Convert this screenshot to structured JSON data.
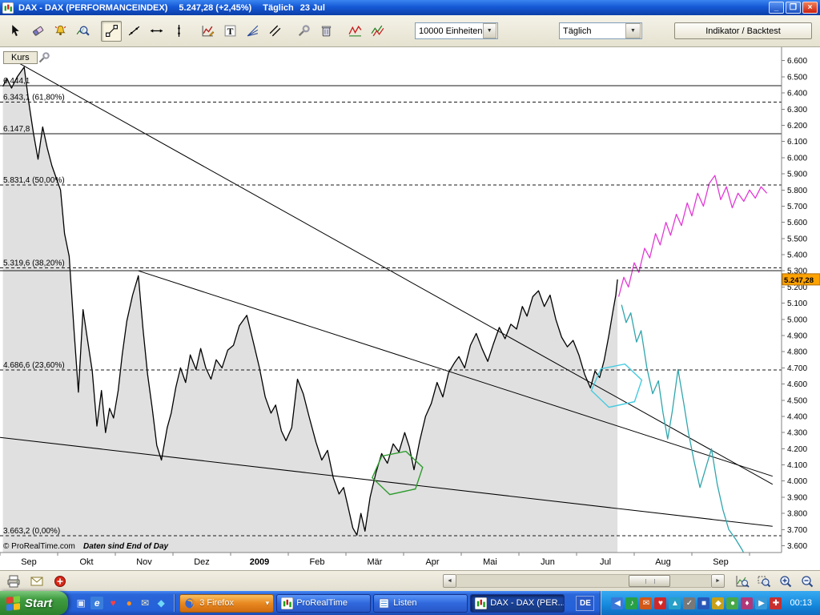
{
  "window": {
    "title": "DAX - DAX (PERFORMANCEINDEX)",
    "price": "5.247,28 (+2,45%)",
    "period": "Täglich",
    "date": "23 Jul",
    "minimize_glyph": "_",
    "restore_glyph": "❐",
    "close_glyph": "×"
  },
  "toolbar": {
    "icons": [
      {
        "name": "pointer-tool-icon",
        "icon": "pointer"
      },
      {
        "name": "eraser-tool-icon",
        "icon": "eraser"
      },
      {
        "name": "price-alarm-tool-icon",
        "icon": "alarm"
      },
      {
        "name": "zoom-chart-tool-icon",
        "icon": "zoomchart"
      },
      {
        "name": "segment-tool-icon",
        "icon": "segment",
        "selected": true,
        "gap": true
      },
      {
        "name": "line-tool-icon",
        "icon": "line"
      },
      {
        "name": "horizontal-line-tool-icon",
        "icon": "hline"
      },
      {
        "name": "vertical-line-tool-icon",
        "icon": "vline"
      },
      {
        "name": "indicator-edit-tool-icon",
        "icon": "chartedit",
        "gap": true
      },
      {
        "name": "text-tool-icon",
        "icon": "text"
      },
      {
        "name": "fan-lines-tool-icon",
        "icon": "fan"
      },
      {
        "name": "parallel-lines-tool-icon",
        "icon": "parallel"
      },
      {
        "name": "settings-tool-icon",
        "icon": "wrench",
        "gap": true
      },
      {
        "name": "delete-tool-icon",
        "icon": "trash"
      },
      {
        "name": "zigzag-indicator-icon",
        "icon": "zigzag",
        "gap": true
      },
      {
        "name": "channel-indicator-icon",
        "icon": "channel"
      }
    ],
    "units_dropdown": "10000 Einheiten",
    "period_dropdown": "Täglich",
    "backtest_button": "Indikator / Backtest",
    "dropdown_arrow": "▼"
  },
  "chart": {
    "kurs_label": "Kurs"
  },
  "chart_data": {
    "type": "line",
    "title": "Kurs",
    "ylim": [
      3600,
      6600
    ],
    "y_step": 100,
    "y_ticks": [
      "6.600",
      "6.500",
      "6.400",
      "6.300",
      "6.200",
      "6.100",
      "6.000",
      "5.900",
      "5.800",
      "5.700",
      "5.600",
      "5.500",
      "5.400",
      "5.300",
      "5.200",
      "5.100",
      "5.000",
      "4.900",
      "4.800",
      "4.700",
      "4.600",
      "4.500",
      "4.400",
      "4.300",
      "4.200",
      "4.100",
      "4.000",
      "3.900",
      "3.800",
      "3.700",
      "3.600"
    ],
    "x_months": [
      "Sep",
      "Okt",
      "Nov",
      "Dez",
      "2009",
      "Feb",
      "Mär",
      "Apr",
      "Mai",
      "Jun",
      "Jul",
      "Aug",
      "Sep"
    ],
    "fill_color": "#e0e0e0",
    "copyright": "© ProRealTime.com",
    "data_note": "Daten sind End of Day",
    "last_price": 5247.28,
    "last_price_label": "5.247,28",
    "badge_color": "#ffa200",
    "levels": [
      {
        "price": 6444.1,
        "label": "6.444,1",
        "style": "solid"
      },
      {
        "price": 6343.1,
        "label": "6.343,1 (61,80%)",
        "style": "dashed"
      },
      {
        "price": 6147.8,
        "label": "6.147,8",
        "style": "solid"
      },
      {
        "price": 5831.4,
        "label": "5.831,4 (50,00%)",
        "style": "dashed"
      },
      {
        "price": 5319.6,
        "label": "5.319,6 (38,20%)",
        "style": "dashed"
      },
      {
        "price": 5300.0,
        "label": "",
        "style": "solid"
      },
      {
        "price": 4686.6,
        "label": "4.686,6 (23,60%)",
        "style": "dashed"
      },
      {
        "price": 3663.2,
        "label": "3.663,2 (0,00%)",
        "style": "dashed"
      }
    ],
    "trendlines": [
      {
        "from": [
          0.3,
          6590
        ],
        "to": [
          13.4,
          3980
        ]
      },
      {
        "from": [
          2.4,
          5300
        ],
        "to": [
          13.4,
          4030
        ]
      },
      {
        "from": [
          0.0,
          4270
        ],
        "to": [
          13.4,
          3720
        ]
      }
    ],
    "annotations": [
      {
        "name": "green-ellipse-annotation",
        "shape": "hexagon",
        "color": "#2e9b2e",
        "center": [
          6.9,
          4050
        ]
      },
      {
        "name": "cyan-ellipse-annotation",
        "shape": "hexagon",
        "color": "#45cbe0",
        "center": [
          10.7,
          4590
        ]
      }
    ],
    "series": [
      {
        "name": "DAX",
        "color": "#000000",
        "filled": true,
        "points": [
          [
            0.05,
            6440
          ],
          [
            0.12,
            6490
          ],
          [
            0.2,
            6430
          ],
          [
            0.3,
            6500
          ],
          [
            0.42,
            6560
          ],
          [
            0.5,
            6340
          ],
          [
            0.58,
            6150
          ],
          [
            0.66,
            5990
          ],
          [
            0.74,
            6190
          ],
          [
            0.82,
            6060
          ],
          [
            0.9,
            5950
          ],
          [
            0.97,
            5880
          ],
          [
            1.05,
            5800
          ],
          [
            1.12,
            5530
          ],
          [
            1.2,
            5390
          ],
          [
            1.28,
            4950
          ],
          [
            1.36,
            4550
          ],
          [
            1.44,
            5060
          ],
          [
            1.52,
            4870
          ],
          [
            1.6,
            4680
          ],
          [
            1.68,
            4340
          ],
          [
            1.76,
            4560
          ],
          [
            1.83,
            4300
          ],
          [
            1.9,
            4450
          ],
          [
            1.97,
            4390
          ],
          [
            2.05,
            4560
          ],
          [
            2.12,
            4780
          ],
          [
            2.2,
            4990
          ],
          [
            2.3,
            5150
          ],
          [
            2.4,
            5270
          ],
          [
            2.48,
            4940
          ],
          [
            2.56,
            4660
          ],
          [
            2.64,
            4450
          ],
          [
            2.72,
            4220
          ],
          [
            2.8,
            4130
          ],
          [
            2.9,
            4330
          ],
          [
            2.97,
            4420
          ],
          [
            3.05,
            4580
          ],
          [
            3.13,
            4700
          ],
          [
            3.22,
            4610
          ],
          [
            3.3,
            4780
          ],
          [
            3.4,
            4690
          ],
          [
            3.48,
            4820
          ],
          [
            3.57,
            4700
          ],
          [
            3.66,
            4630
          ],
          [
            3.75,
            4750
          ],
          [
            3.85,
            4700
          ],
          [
            3.95,
            4810
          ],
          [
            4.05,
            4840
          ],
          [
            4.15,
            4960
          ],
          [
            4.28,
            5025
          ],
          [
            4.4,
            4850
          ],
          [
            4.5,
            4700
          ],
          [
            4.6,
            4520
          ],
          [
            4.7,
            4420
          ],
          [
            4.78,
            4470
          ],
          [
            4.88,
            4310
          ],
          [
            4.96,
            4250
          ],
          [
            5.06,
            4330
          ],
          [
            5.16,
            4630
          ],
          [
            5.26,
            4540
          ],
          [
            5.36,
            4400
          ],
          [
            5.48,
            4240
          ],
          [
            5.58,
            4130
          ],
          [
            5.68,
            4190
          ],
          [
            5.78,
            4020
          ],
          [
            5.88,
            3920
          ],
          [
            5.96,
            3960
          ],
          [
            6.05,
            3820
          ],
          [
            6.12,
            3710
          ],
          [
            6.19,
            3666
          ],
          [
            6.26,
            3800
          ],
          [
            6.33,
            3690
          ],
          [
            6.42,
            3900
          ],
          [
            6.52,
            4050
          ],
          [
            6.62,
            4170
          ],
          [
            6.72,
            4110
          ],
          [
            6.82,
            4230
          ],
          [
            6.92,
            4180
          ],
          [
            7.02,
            4300
          ],
          [
            7.1,
            4210
          ],
          [
            7.18,
            4070
          ],
          [
            7.28,
            4250
          ],
          [
            7.38,
            4400
          ],
          [
            7.48,
            4480
          ],
          [
            7.58,
            4610
          ],
          [
            7.68,
            4520
          ],
          [
            7.78,
            4670
          ],
          [
            7.88,
            4730
          ],
          [
            7.96,
            4770
          ],
          [
            8.06,
            4700
          ],
          [
            8.16,
            4840
          ],
          [
            8.26,
            4913
          ],
          [
            8.36,
            4820
          ],
          [
            8.46,
            4740
          ],
          [
            8.56,
            4850
          ],
          [
            8.66,
            4950
          ],
          [
            8.76,
            4880
          ],
          [
            8.86,
            4970
          ],
          [
            8.96,
            4940
          ],
          [
            9.06,
            5080
          ],
          [
            9.14,
            5020
          ],
          [
            9.24,
            5140
          ],
          [
            9.34,
            5177
          ],
          [
            9.44,
            5080
          ],
          [
            9.54,
            5150
          ],
          [
            9.64,
            5000
          ],
          [
            9.74,
            4890
          ],
          [
            9.84,
            4830
          ],
          [
            9.94,
            4870
          ],
          [
            10.04,
            4780
          ],
          [
            10.14,
            4660
          ],
          [
            10.24,
            4576
          ],
          [
            10.32,
            4680
          ],
          [
            10.4,
            4640
          ],
          [
            10.48,
            4750
          ],
          [
            10.56,
            4900
          ],
          [
            10.63,
            5050
          ],
          [
            10.68,
            5150
          ],
          [
            10.71,
            5247
          ]
        ]
      },
      {
        "name": "projection-bullish",
        "color": "#e23ad6",
        "filled": false,
        "points": [
          [
            10.73,
            5140
          ],
          [
            10.82,
            5260
          ],
          [
            10.9,
            5200
          ],
          [
            11.0,
            5350
          ],
          [
            11.08,
            5290
          ],
          [
            11.18,
            5440
          ],
          [
            11.27,
            5380
          ],
          [
            11.37,
            5530
          ],
          [
            11.45,
            5460
          ],
          [
            11.55,
            5600
          ],
          [
            11.63,
            5520
          ],
          [
            11.73,
            5650
          ],
          [
            11.82,
            5580
          ],
          [
            11.92,
            5720
          ],
          [
            12.0,
            5640
          ],
          [
            12.1,
            5780
          ],
          [
            12.2,
            5700
          ],
          [
            12.3,
            5840
          ],
          [
            12.4,
            5890
          ],
          [
            12.5,
            5740
          ],
          [
            12.6,
            5820
          ],
          [
            12.7,
            5690
          ],
          [
            12.8,
            5780
          ],
          [
            12.9,
            5730
          ],
          [
            13.0,
            5800
          ],
          [
            13.1,
            5750
          ],
          [
            13.2,
            5820
          ],
          [
            13.3,
            5780
          ]
        ]
      },
      {
        "name": "projection-bearish",
        "color": "#2fa6ad",
        "filled": false,
        "points": [
          [
            10.78,
            5090
          ],
          [
            10.86,
            4980
          ],
          [
            10.94,
            5040
          ],
          [
            11.04,
            4860
          ],
          [
            11.12,
            4930
          ],
          [
            11.22,
            4700
          ],
          [
            11.32,
            4540
          ],
          [
            11.42,
            4620
          ],
          [
            11.5,
            4420
          ],
          [
            11.58,
            4260
          ],
          [
            11.66,
            4430
          ],
          [
            11.76,
            4690
          ],
          [
            11.86,
            4480
          ],
          [
            11.94,
            4300
          ],
          [
            12.04,
            4120
          ],
          [
            12.14,
            3960
          ],
          [
            12.24,
            4080
          ],
          [
            12.34,
            4200
          ],
          [
            12.44,
            3980
          ],
          [
            12.54,
            3820
          ],
          [
            12.64,
            3700
          ],
          [
            12.76,
            3640
          ],
          [
            12.88,
            3570
          ],
          [
            12.98,
            3480
          ]
        ]
      }
    ]
  },
  "chart_toolbar": {
    "left_icons": [
      {
        "name": "print-icon",
        "icon": "print"
      },
      {
        "name": "email-icon",
        "icon": "mail"
      },
      {
        "name": "alerts-icon",
        "icon": "redtool"
      }
    ],
    "right_icons": [
      {
        "name": "zoom-fit-icon",
        "icon": "zoomfit"
      },
      {
        "name": "zoom-selection-icon",
        "icon": "zoomsel"
      },
      {
        "name": "zoom-in-icon",
        "icon": "zoomin"
      },
      {
        "name": "zoom-out-icon",
        "icon": "zoomout"
      }
    ],
    "scroll_left_arrow": "◄",
    "scroll_right_arrow": "►"
  },
  "taskbar": {
    "start_label": "Start",
    "language": "DE",
    "clock": "00:13",
    "quick_launch": [
      {
        "name": "show-desktop-icon",
        "glyph": "▣",
        "color": "#dce8ff"
      },
      {
        "name": "internet-explorer-icon",
        "glyph": "e",
        "color": "#ffffff",
        "bg": "#3a7edc",
        "italic": true
      },
      {
        "name": "heart-icon",
        "glyph": "♥",
        "color": "#ff4040"
      },
      {
        "name": "firefox-icon",
        "glyph": "●",
        "color": "#ff9020"
      },
      {
        "name": "mail-icon",
        "glyph": "✉",
        "color": "#f0e8c0"
      },
      {
        "name": "media-player-icon",
        "glyph": "◆",
        "color": "#70d8f8"
      }
    ],
    "tasks": [
      {
        "label": "3 Firefox",
        "icon": "firefox",
        "variant": "firefox",
        "dropdown": "▾"
      },
      {
        "label": "ProRealTime",
        "icon": "prt",
        "variant": "normal"
      },
      {
        "label": "Listen",
        "icon": "listen",
        "variant": "normal"
      },
      {
        "label": "DAX - DAX (PER...",
        "icon": "prt",
        "variant": "active"
      }
    ],
    "tray_icons": [
      {
        "name": "tray-hide-icon",
        "glyph": "◀",
        "bg": "#3a78d8"
      },
      {
        "name": "tray-volume-icon",
        "glyph": "♪",
        "bg": "#28a048"
      },
      {
        "name": "tray-mail-icon",
        "glyph": "✉",
        "bg": "#d05818"
      },
      {
        "name": "tray-heart-icon",
        "glyph": "♥",
        "bg": "#d02828"
      },
      {
        "name": "tray-update-icon",
        "glyph": "▲",
        "bg": "#28a0c8"
      },
      {
        "name": "tray-status-icon",
        "glyph": "✓",
        "bg": "#787878"
      },
      {
        "name": "tray-network-icon",
        "glyph": "■",
        "bg": "#2858b8"
      },
      {
        "name": "tray-gold-icon",
        "glyph": "◆",
        "bg": "#c8a018"
      },
      {
        "name": "tray-green-icon",
        "glyph": "●",
        "bg": "#48a848"
      },
      {
        "name": "tray-pink-icon",
        "glyph": "♦",
        "bg": "#b03878"
      },
      {
        "name": "tray-play-icon",
        "glyph": "▶",
        "bg": "#3898d8"
      },
      {
        "name": "tray-red-icon",
        "glyph": "✚",
        "bg": "#c83030"
      }
    ]
  }
}
